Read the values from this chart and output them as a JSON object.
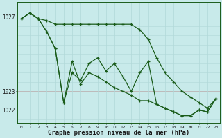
{
  "title": "Graphe pression niveau de la mer (hPa)",
  "bg_color": "#c8eaea",
  "grid_color_h": "#d08888",
  "grid_color_v": "#b0d8d8",
  "line_color": "#1a5c1a",
  "xlim": [
    -0.5,
    23.5
  ],
  "ylim": [
    1021.3,
    1027.8
  ],
  "ytick_vals": [
    1022,
    1023,
    1027
  ],
  "ytick_labels": [
    "1022",
    "1023",
    "1027"
  ],
  "series1": [
    1026.9,
    1027.2,
    1026.9,
    1026.8,
    1026.6,
    1026.6,
    1026.6,
    1026.6,
    1026.6,
    1026.6,
    1026.6,
    1026.6,
    1026.6,
    1026.6,
    1026.3,
    1025.8,
    1024.8,
    1024.0,
    1023.5,
    1023.0,
    1022.7,
    1022.4,
    1022.1,
    1022.6
  ],
  "series2": [
    1026.9,
    1027.2,
    1026.9,
    1026.2,
    1025.3,
    1022.4,
    1024.0,
    1023.6,
    1024.5,
    1024.8,
    1024.1,
    1024.5,
    1023.8,
    1023.0,
    1024.0,
    1024.6,
    1022.3,
    1022.1,
    1021.9,
    1021.7,
    1021.7,
    1022.0,
    1021.9,
    1022.6
  ],
  "series3": [
    1026.9,
    1027.2,
    1026.9,
    1026.2,
    1025.3,
    1022.4,
    1024.6,
    1023.4,
    1024.0,
    1023.8,
    1023.5,
    1023.2,
    1023.0,
    1022.8,
    1022.5,
    1022.5,
    1022.3,
    1022.1,
    1021.9,
    1021.7,
    1021.7,
    1022.0,
    1021.9,
    1022.6
  ]
}
